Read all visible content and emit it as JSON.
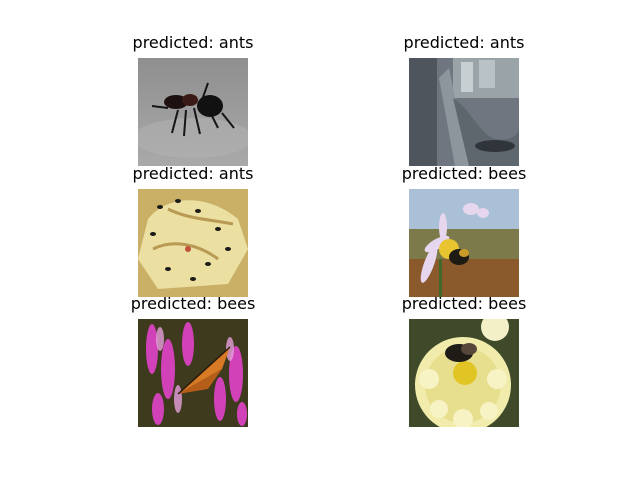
{
  "panels": [
    {
      "title": "predicted: ants",
      "image_subject": "ant-on-ground"
    },
    {
      "title": "predicted: ants",
      "image_subject": "wet-surface"
    },
    {
      "title": "predicted: ants",
      "image_subject": "ants-on-banana"
    },
    {
      "title": "predicted: bees",
      "image_subject": "bee-on-purple-flower"
    },
    {
      "title": "predicted: bees",
      "image_subject": "butterfly-on-pink-flowers"
    },
    {
      "title": "predicted: bees",
      "image_subject": "bee-on-yellow-flower"
    }
  ]
}
